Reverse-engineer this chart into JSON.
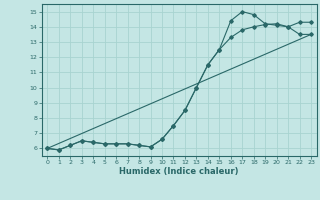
{
  "background_color": "#c4e6e4",
  "grid_color": "#a8d4d0",
  "line_color": "#2a6868",
  "xlabel": "Humidex (Indice chaleur)",
  "xlim": [
    -0.5,
    23.5
  ],
  "ylim": [
    5.5,
    15.5
  ],
  "yticks": [
    6,
    7,
    8,
    9,
    10,
    11,
    12,
    13,
    14,
    15
  ],
  "xticks": [
    0,
    1,
    2,
    3,
    4,
    5,
    6,
    7,
    8,
    9,
    10,
    11,
    12,
    13,
    14,
    15,
    16,
    17,
    18,
    19,
    20,
    21,
    22,
    23
  ],
  "line1_x": [
    0,
    1,
    2,
    3,
    4,
    5,
    6,
    7,
    8,
    9,
    10,
    11,
    12,
    13,
    14,
    15,
    16,
    17,
    18,
    19,
    20,
    21,
    22,
    23
  ],
  "line1_y": [
    6.0,
    5.9,
    6.2,
    6.5,
    6.4,
    6.3,
    6.3,
    6.3,
    6.2,
    6.1,
    6.6,
    7.5,
    8.5,
    10.0,
    11.5,
    12.5,
    14.4,
    15.0,
    14.8,
    14.2,
    14.1,
    14.0,
    14.3,
    14.3
  ],
  "line2_x": [
    0,
    1,
    2,
    3,
    4,
    5,
    6,
    7,
    8,
    9,
    10,
    11,
    12,
    13,
    14,
    15,
    16,
    17,
    18,
    19,
    20,
    21,
    22,
    23
  ],
  "line2_y": [
    6.0,
    5.9,
    6.2,
    6.5,
    6.4,
    6.3,
    6.3,
    6.3,
    6.2,
    6.1,
    6.6,
    7.5,
    8.5,
    10.0,
    11.5,
    12.5,
    13.3,
    13.8,
    14.0,
    14.15,
    14.2,
    14.0,
    13.5,
    13.5
  ],
  "line3_x": [
    0,
    23
  ],
  "line3_y": [
    6.0,
    13.5
  ]
}
